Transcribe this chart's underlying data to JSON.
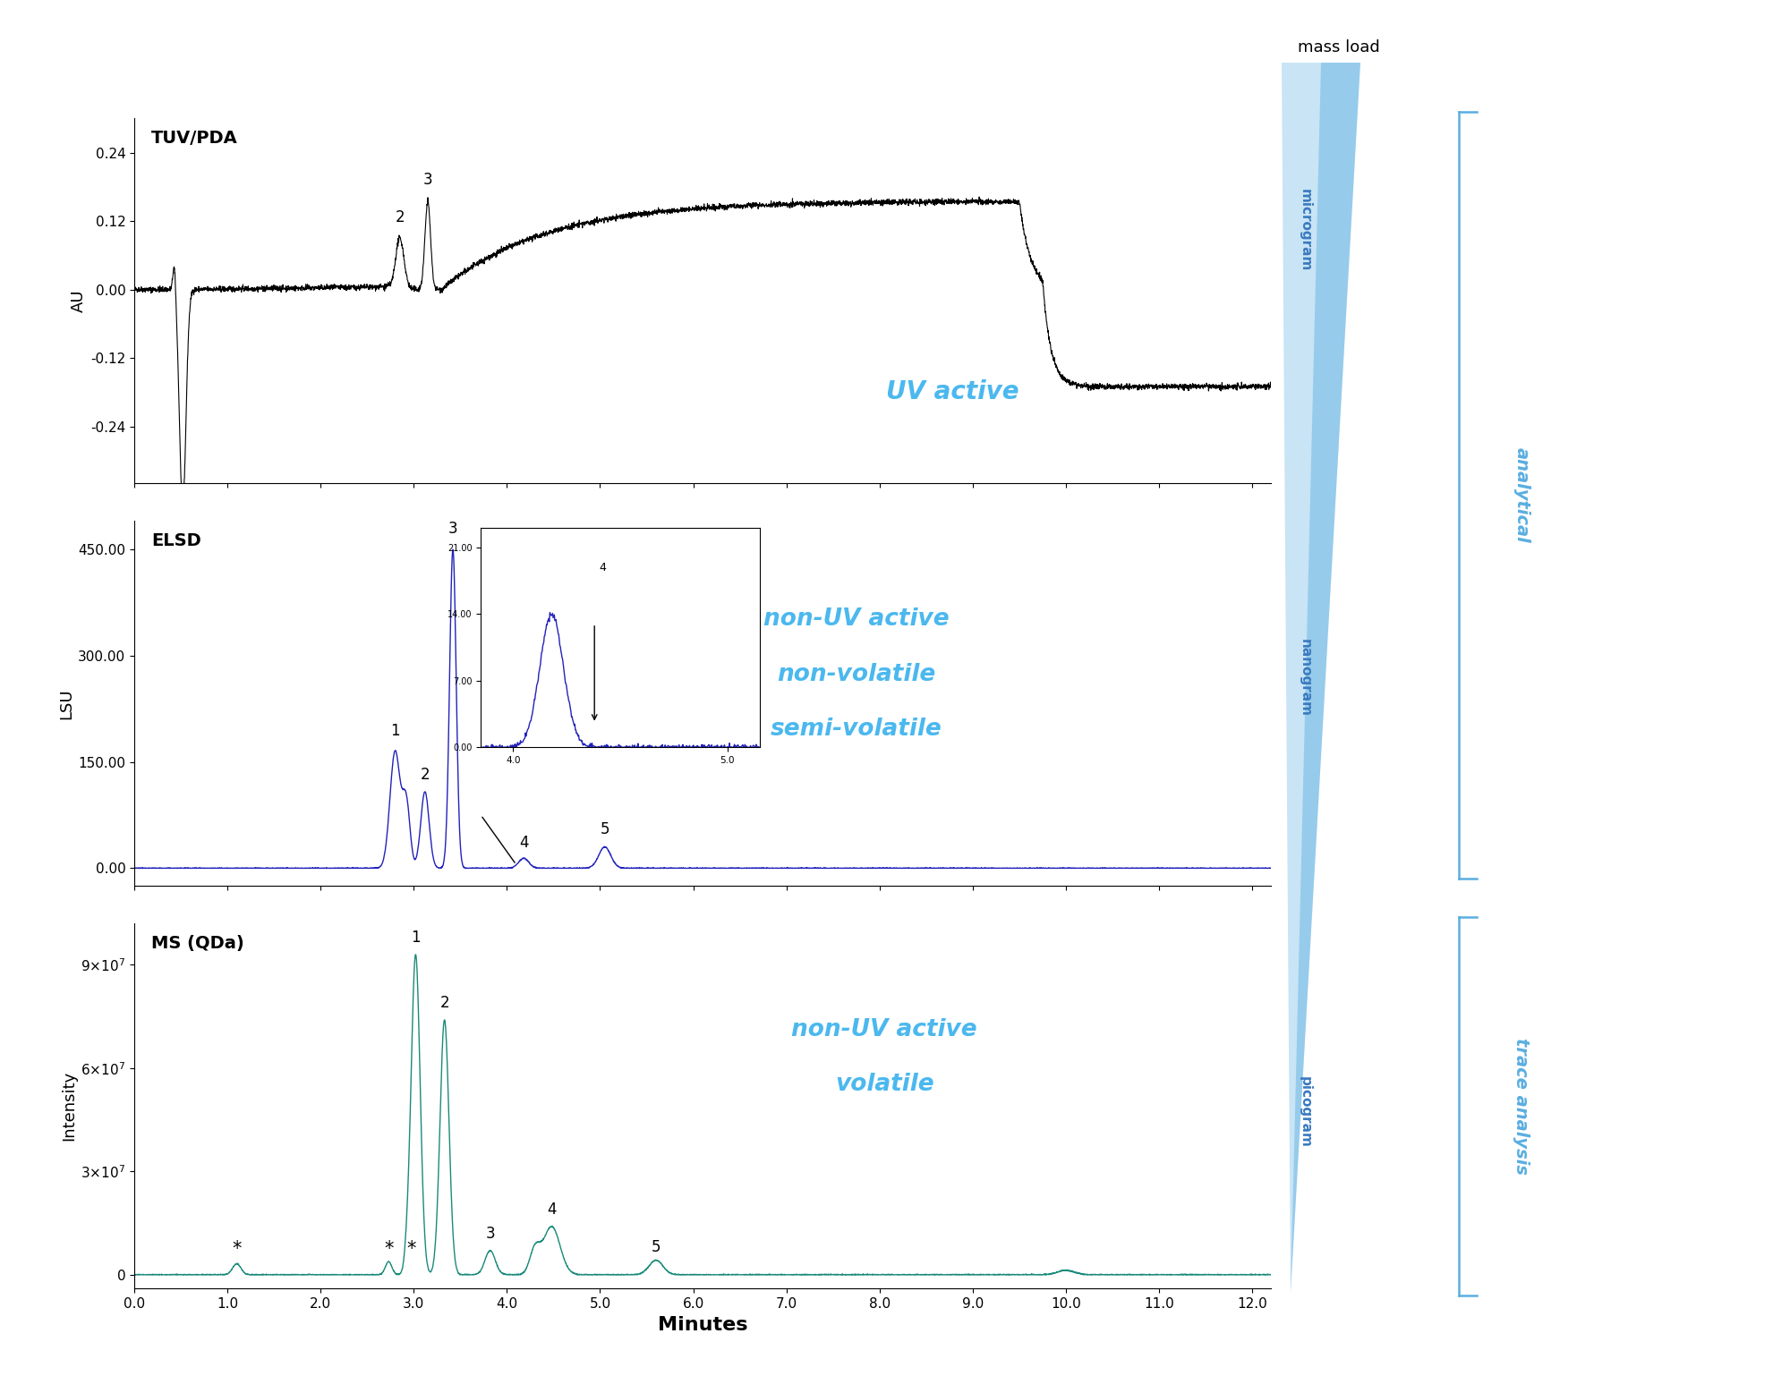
{
  "tuv_color": "#000000",
  "elsd_color": "#2222bb",
  "ms_color": "#1a8a7a",
  "annotation_color": "#4bb8ee",
  "label_fontsize": 13,
  "title_fontsize": 14,
  "tick_fontsize": 11,
  "annotation_fontsize": 20,
  "xlabel": "Minutes",
  "tuv_ylabel": "AU",
  "elsd_ylabel": "LSU",
  "ms_ylabel": "Intensity",
  "tuv_title": "TUV/PDA",
  "elsd_title": "ELSD",
  "ms_title": "MS (QDa)",
  "tuv_ylim": [
    -0.34,
    0.3
  ],
  "tuv_yticks": [
    -0.24,
    -0.12,
    0.0,
    0.12,
    0.24
  ],
  "elsd_ylim": [
    -25,
    490
  ],
  "elsd_yticks": [
    0.0,
    150.0,
    300.0,
    450.0
  ],
  "ms_ylim": [
    -4000000.0,
    102000000.0
  ],
  "ms_yticks": [
    0,
    30000000.0,
    60000000.0,
    90000000.0
  ],
  "xlim": [
    0.0,
    12.2
  ],
  "xticks": [
    0.0,
    1.0,
    2.0,
    3.0,
    4.0,
    5.0,
    6.0,
    7.0,
    8.0,
    9.0,
    10.0,
    11.0,
    12.0
  ],
  "uv_active_text": "UV active",
  "elsd_text1": "non-UV active",
  "elsd_text2": "non-volatile",
  "elsd_text3": "semi-volatile",
  "ms_text1": "non-UV active",
  "ms_text2": "volatile",
  "mass_load_text": "mass load",
  "microgram_text": "microgram",
  "nanogram_text": "nanogram",
  "picogram_text": "picogram",
  "analytical_text": "analytical",
  "trace_text": "trace analysis",
  "tri_color_light": "#c8e4f5",
  "tri_color_dark": "#5aaee0",
  "bracket_color": "#5aaee0"
}
